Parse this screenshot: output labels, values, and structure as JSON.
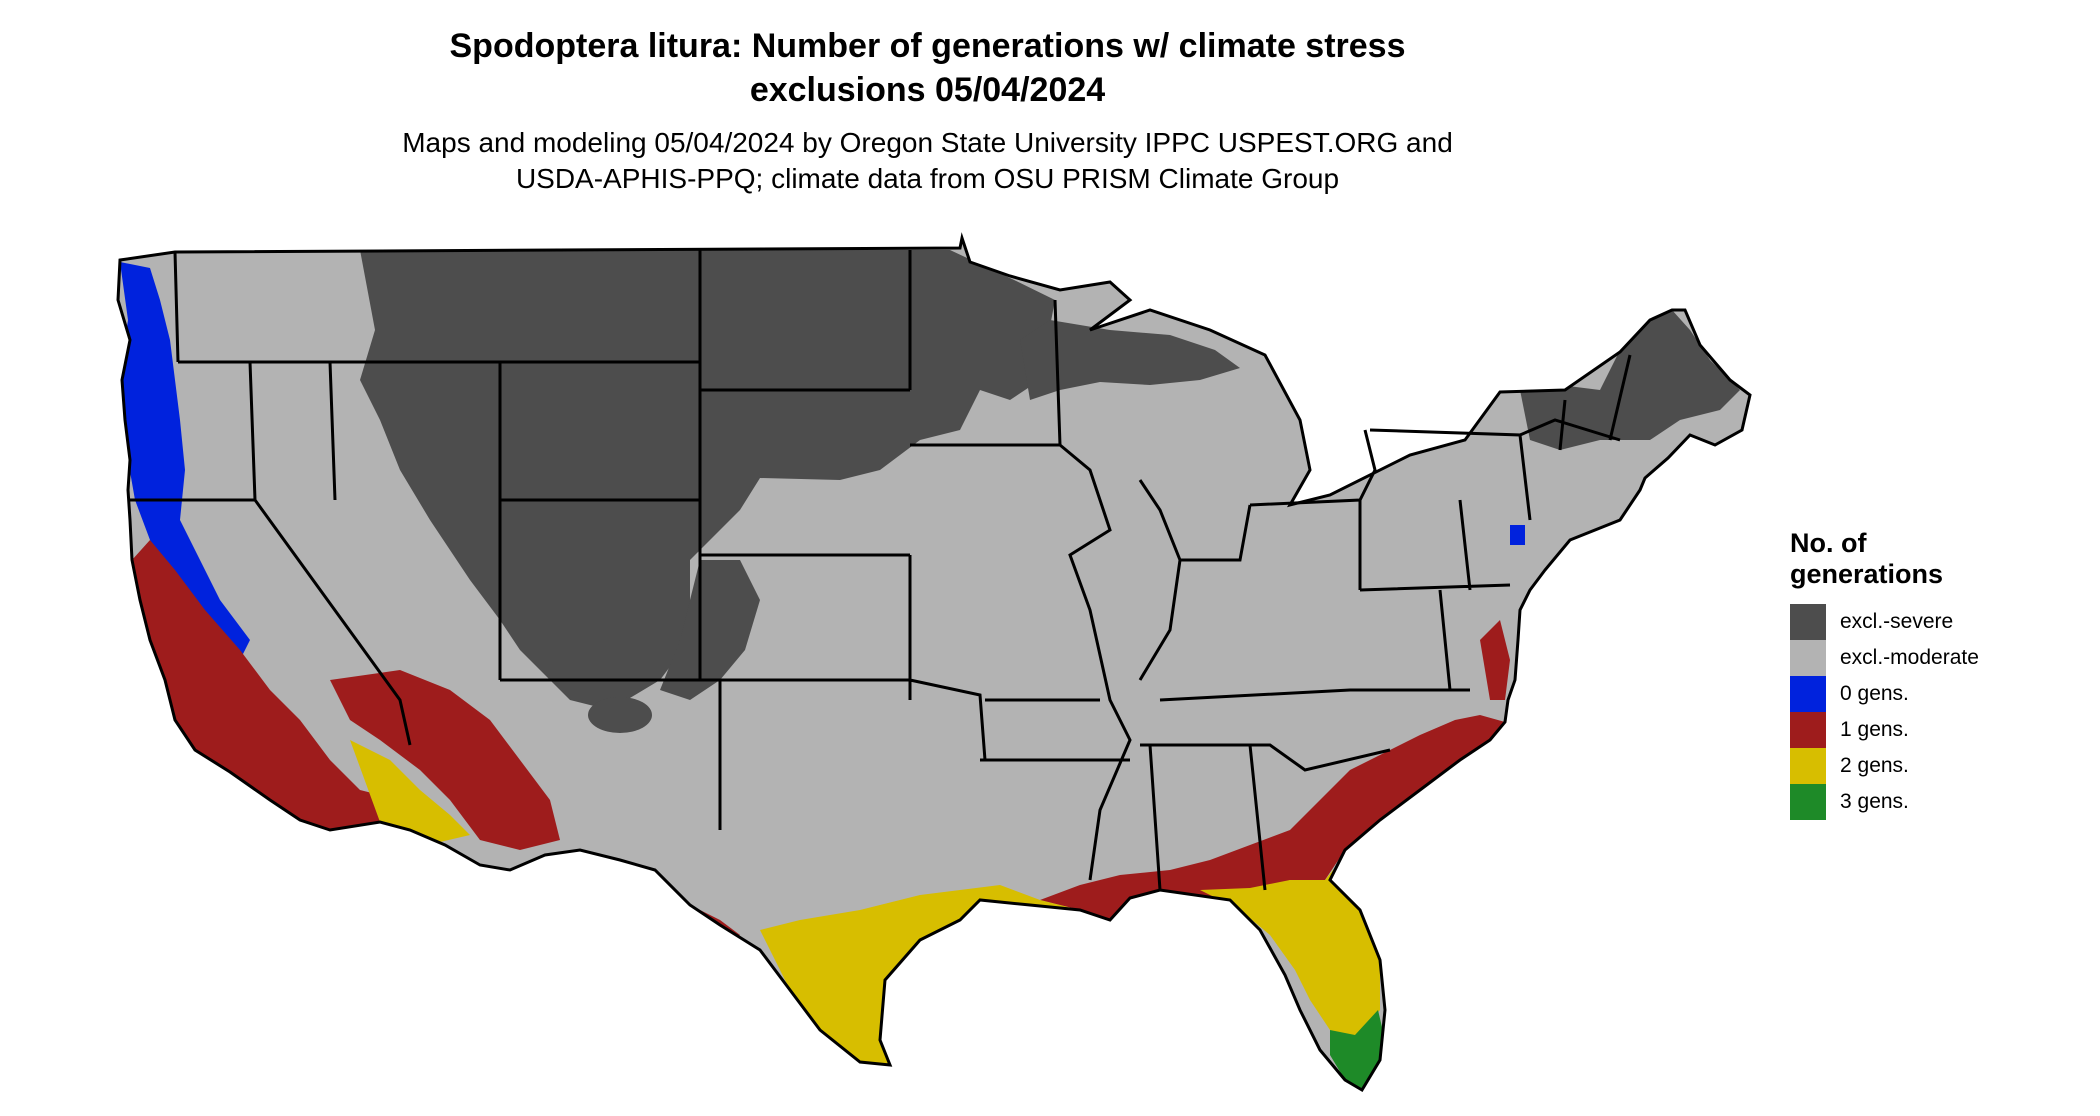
{
  "title": {
    "line1": "Spodoptera litura: Number of generations w/ climate stress",
    "line2": "exclusions 05/04/2024"
  },
  "subtitle": {
    "line1": "Maps and modeling 05/04/2024 by Oregon State University IPPC USPEST.ORG and",
    "line2": "USDA-APHIS-PPQ; climate data from OSU PRISM Climate Group"
  },
  "legend": {
    "title_line1": "No. of",
    "title_line2": "generations",
    "items": [
      {
        "label": "excl.-severe",
        "color": "#4d4d4d"
      },
      {
        "label": "excl.-moderate",
        "color": "#b3b3b3"
      },
      {
        "label": "0 gens.",
        "color": "#0022dd"
      },
      {
        "label": "1 gens.",
        "color": "#9e1c1c"
      },
      {
        "label": "2 gens.",
        "color": "#d7be00"
      },
      {
        "label": "3 gens.",
        "color": "#1e8a28"
      }
    ]
  },
  "colors": {
    "state_border": "#000000",
    "background": "#ffffff"
  }
}
